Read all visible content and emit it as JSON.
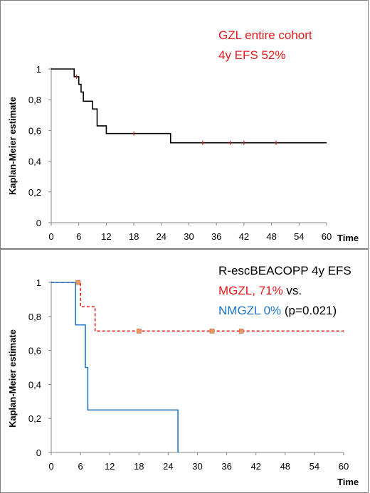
{
  "chart_data": [
    {
      "type": "line",
      "subtype": "kaplan-meier-step",
      "title": "",
      "annotation_lines": [
        {
          "text": "GZL entire cohort",
          "color": "#e31a1c"
        },
        {
          "text": "4y EFS 52%",
          "color": "#e31a1c"
        }
      ],
      "xlabel": "Time",
      "ylabel": "Kaplan-Meier estimate",
      "xlim": [
        0,
        60
      ],
      "ylim": [
        0,
        1
      ],
      "x_ticks": [
        "0",
        "6",
        "12",
        "18",
        "24",
        "30",
        "36",
        "42",
        "48",
        "54",
        "60"
      ],
      "y_ticks": [
        "0",
        "0,2",
        "0,4",
        "0,6",
        "0,8",
        "1"
      ],
      "grid": false,
      "series": [
        {
          "color": "#000000",
          "style": "solid",
          "x": [
            0,
            5,
            6,
            6.5,
            7,
            8,
            9,
            10,
            12,
            26,
            60
          ],
          "y": [
            1,
            0.95,
            0.9,
            0.85,
            0.79,
            0.79,
            0.74,
            0.63,
            0.58,
            0.52,
            0.52
          ],
          "censored": [
            {
              "x": 5.5,
              "y": 0.95
            },
            {
              "x": 18,
              "y": 0.58
            },
            {
              "x": 33,
              "y": 0.52
            },
            {
              "x": 39,
              "y": 0.52
            },
            {
              "x": 42,
              "y": 0.52
            },
            {
              "x": 49,
              "y": 0.52
            }
          ],
          "censor_color": "#e31a1c"
        }
      ]
    },
    {
      "type": "line",
      "subtype": "kaplan-meier-step",
      "title": "",
      "annotation_lines": [
        [
          {
            "text": "R-escBEACOPP 4y EFS",
            "color": "#000000"
          }
        ],
        [
          {
            "text": "MGZL, 71%",
            "color": "#e31a1c"
          },
          {
            "text": " vs.",
            "color": "#000000"
          }
        ],
        [
          {
            "text": "NMGZL 0%",
            "color": "#1f77c4"
          },
          {
            "text": " (p=0.021)",
            "color": "#000000"
          }
        ]
      ],
      "xlabel": "Time",
      "ylabel": "Kaplan-Meier estimate",
      "xlim": [
        0,
        60
      ],
      "ylim": [
        0,
        1
      ],
      "x_ticks": [
        "0",
        "6",
        "12",
        "18",
        "24",
        "30",
        "36",
        "42",
        "48",
        "54",
        "60"
      ],
      "y_ticks": [
        "0",
        "0,2",
        "0,4",
        "0,6",
        "0,8",
        "1"
      ],
      "grid": false,
      "series": [
        {
          "name": "MGZL",
          "color": "#e31a1c",
          "style": "dashed",
          "x": [
            0,
            6,
            9,
            60
          ],
          "y": [
            1,
            0.857,
            0.714,
            0.714
          ],
          "censored": [
            {
              "x": 5.5,
              "y": 1
            },
            {
              "x": 18,
              "y": 0.714
            },
            {
              "x": 33,
              "y": 0.714
            },
            {
              "x": 39,
              "y": 0.714
            }
          ],
          "censor_color": "#ed9b59"
        },
        {
          "name": "NMGZL",
          "color": "#1f77c4",
          "style": "solid",
          "x": [
            0,
            5,
            7,
            7.5,
            26
          ],
          "y": [
            1,
            0.75,
            0.5,
            0.25,
            0
          ],
          "censored": []
        }
      ]
    }
  ]
}
